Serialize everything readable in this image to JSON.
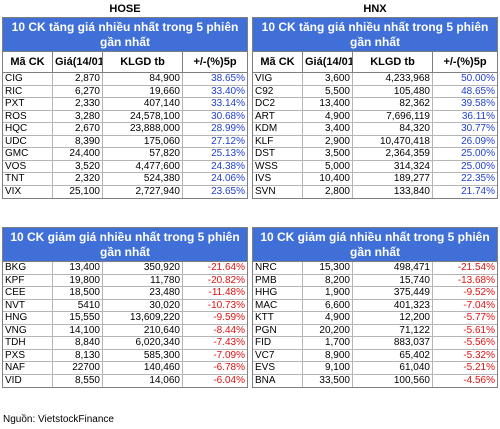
{
  "hose": {
    "label": "HOSE",
    "up_title": "10 CK tăng giá nhiều nhất trong 5 phiên gần nhất",
    "down_title": "10 CK giảm giá nhiều nhất trong 5 phiên gần nhất",
    "headers": [
      "Mã CK",
      "Giá(14/01)",
      "KLGD tb",
      "+/-(%)5p"
    ],
    "up_rows": [
      [
        "CIG",
        "2,870",
        "84,900",
        "38.65%"
      ],
      [
        "RIC",
        "6,270",
        "19,660",
        "33.40%"
      ],
      [
        "PXT",
        "2,330",
        "407,140",
        "33.14%"
      ],
      [
        "ROS",
        "3,280",
        "24,578,100",
        "30.68%"
      ],
      [
        "HQC",
        "2,670",
        "23,888,000",
        "28.99%"
      ],
      [
        "UDC",
        "8,390",
        "175,060",
        "27.12%"
      ],
      [
        "GMC",
        "24,400",
        "57,820",
        "25.13%"
      ],
      [
        "VOS",
        "3,520",
        "4,477,600",
        "24.38%"
      ],
      [
        "TNT",
        "2,320",
        "524,380",
        "24.06%"
      ],
      [
        "VIX",
        "25,100",
        "2,727,940",
        "23.65%"
      ]
    ],
    "down_rows": [
      [
        "BKG",
        "13,400",
        "350,920",
        "-21.64%"
      ],
      [
        "KPF",
        "19,800",
        "11,780",
        "-20.82%"
      ],
      [
        "CEE",
        "18,500",
        "23,480",
        "-11.48%"
      ],
      [
        "NVT",
        "5410",
        "30,020",
        "-10.73%"
      ],
      [
        "HNG",
        "15,550",
        "13,609,220",
        "-9.59%"
      ],
      [
        "VNG",
        "14,100",
        "210,640",
        "-8.44%"
      ],
      [
        "TDH",
        "8,840",
        "6,020,340",
        "-7.43%"
      ],
      [
        "PXS",
        "8,130",
        "585,300",
        "-7.09%"
      ],
      [
        "NAF",
        "22700",
        "140,460",
        "-6.78%"
      ],
      [
        "VID",
        "8,550",
        "14,060",
        "-6.04%"
      ]
    ]
  },
  "hnx": {
    "label": "HNX",
    "up_title": "10 CK tăng giá nhiều nhất trong 5 phiên gần nhất",
    "down_title": "10 CK giảm giá nhiều nhất trong 5 phiên gần nhất",
    "headers": [
      "Mã CK",
      "Giá(14/01)",
      "KLGD tb",
      "+/-(%)5p"
    ],
    "up_rows": [
      [
        "VIG",
        "3,600",
        "4,233,968",
        "50.00%"
      ],
      [
        "C92",
        "5,500",
        "105,480",
        "48.65%"
      ],
      [
        "DC2",
        "13,400",
        "82,362",
        "39.58%"
      ],
      [
        "ART",
        "4,900",
        "7,696,119",
        "36.11%"
      ],
      [
        "KDM",
        "3,400",
        "84,320",
        "30.77%"
      ],
      [
        "KLF",
        "2,900",
        "10,470,418",
        "26.09%"
      ],
      [
        "DST",
        "3,500",
        "2,364,359",
        "25.00%"
      ],
      [
        "WSS",
        "5,000",
        "314,324",
        "25.00%"
      ],
      [
        "IVS",
        "10,400",
        "189,277",
        "22.35%"
      ],
      [
        "SVN",
        "2,800",
        "133,840",
        "21.74%"
      ]
    ],
    "down_rows": [
      [
        "NRC",
        "15,300",
        "498,471",
        "-21.54%"
      ],
      [
        "PMB",
        "8,200",
        "15,740",
        "-13.68%"
      ],
      [
        "HHG",
        "1,900",
        "375,449",
        "-9.52%"
      ],
      [
        "MAC",
        "6,600",
        "401,323",
        "-7.04%"
      ],
      [
        "KTT",
        "4,900",
        "12,200",
        "-5.77%"
      ],
      [
        "PGN",
        "20,200",
        "71,122",
        "-5.61%"
      ],
      [
        "FID",
        "1,700",
        "883,037",
        "-5.56%"
      ],
      [
        "VC7",
        "8,900",
        "65,402",
        "-5.32%"
      ],
      [
        "EVS",
        "9,100",
        "61,040",
        "-5.21%"
      ],
      [
        "BNA",
        "33,500",
        "100,560",
        "-4.56%"
      ]
    ]
  },
  "source": "Nguồn: VietstockFinance"
}
